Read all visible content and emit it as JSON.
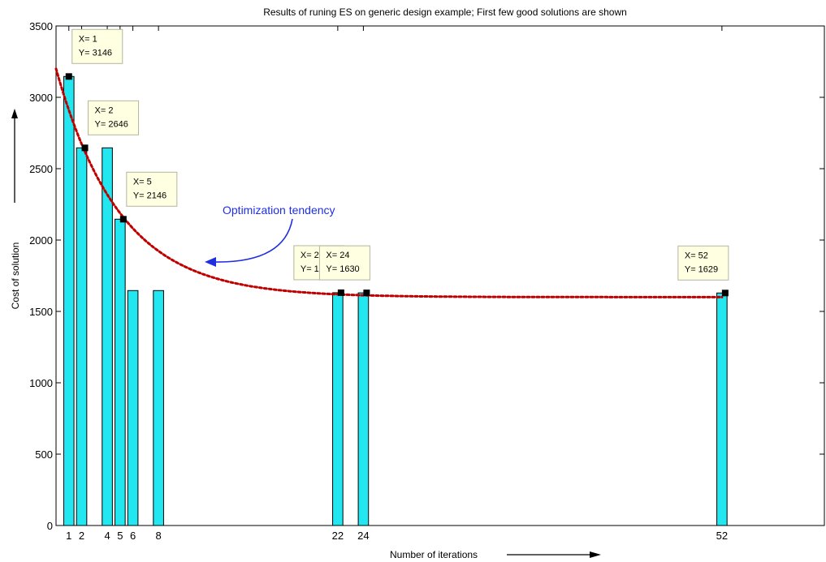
{
  "chart_data": {
    "type": "bar",
    "title": "Results of runing ES on generic design example; First few good solutions are shown",
    "xlabel": "Number of iterations",
    "ylabel": "Cost of solution",
    "xlim": [
      0,
      60
    ],
    "ylim": [
      0,
      3500
    ],
    "yticks": [
      0,
      500,
      1000,
      1500,
      2000,
      2500,
      3000,
      3500
    ],
    "xticks": [
      1,
      2,
      4,
      5,
      6,
      8,
      22,
      24,
      52
    ],
    "bars": [
      {
        "x": 1,
        "y": 3146
      },
      {
        "x": 2,
        "y": 2646
      },
      {
        "x": 4,
        "y": 2646
      },
      {
        "x": 5,
        "y": 2146
      },
      {
        "x": 6,
        "y": 1646
      },
      {
        "x": 8,
        "y": 1646
      },
      {
        "x": 22,
        "y": 1631
      },
      {
        "x": 24,
        "y": 1630
      },
      {
        "x": 52,
        "y": 1629
      }
    ],
    "bar_color": "#22e6f0",
    "datatips": [
      {
        "x": 1,
        "y": 3146,
        "xtext": "X= 1",
        "ytext": "Y= 3146"
      },
      {
        "x": 2,
        "y": 2646,
        "xtext": "X= 2",
        "ytext": "Y= 2646"
      },
      {
        "x": 5,
        "y": 2146,
        "xtext": "X= 5",
        "ytext": "Y= 2146"
      },
      {
        "x": 22,
        "y": 1631,
        "xtext": "X= 22",
        "ytext": "Y= 1631"
      },
      {
        "x": 24,
        "y": 1630,
        "xtext": "X= 24",
        "ytext": "Y= 1630"
      },
      {
        "x": 52,
        "y": 1629,
        "xtext": "X= 52",
        "ytext": "Y= 1629"
      }
    ],
    "trend_annotation": "Optimization tendency",
    "trend_color": "#c00000",
    "annotation_color": "#1f2fe0",
    "grid": false
  }
}
